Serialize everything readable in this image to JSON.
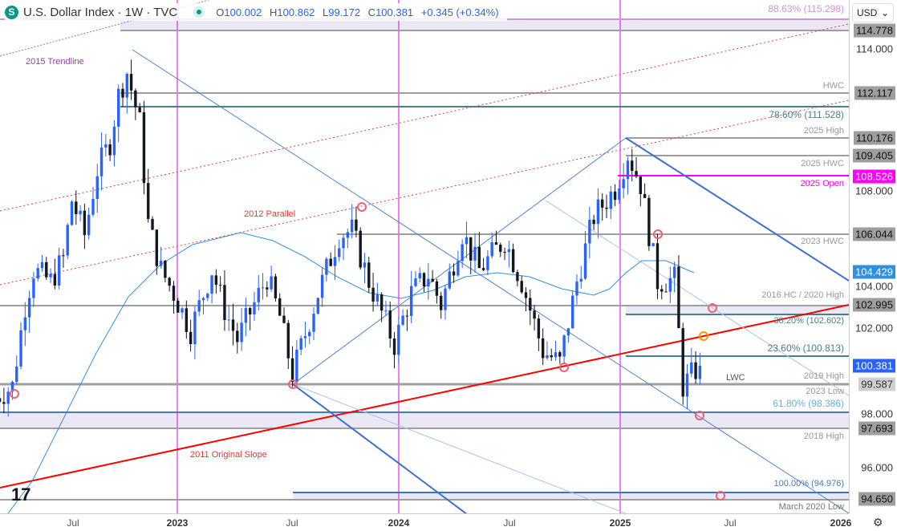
{
  "header": {
    "symbol_icon": "S",
    "title": "U.S. Dollar Index · 1W · TVC",
    "open_label": "O",
    "open": "100.002",
    "high_label": "H",
    "high": "100.862",
    "low_label": "L",
    "low": "99.172",
    "close_label": "C",
    "close": "100.381",
    "change": "+0.345 (+0.34%)"
  },
  "currency": "USD",
  "colors": {
    "up": "#2962ff",
    "down": "#131722",
    "magenta": "#ff00ff",
    "red": "#ff0000",
    "teal": "#4a7f8c",
    "gray": "#9e9e9e"
  },
  "price_axis": [
    {
      "text": "114.778",
      "tag": true
    },
    {
      "text": "114.000"
    },
    {
      "text": "112.117",
      "tag": true
    },
    {
      "text": "110.176",
      "tag": true
    },
    {
      "text": "109.405",
      "tag": true
    },
    {
      "text": "108.526",
      "tag": "magenta"
    },
    {
      "text": "108.000"
    },
    {
      "text": "106.044",
      "tag": true
    },
    {
      "text": "104.429",
      "tag": "blue"
    },
    {
      "text": "104.000"
    },
    {
      "text": "102.995",
      "tag": true
    },
    {
      "text": "102.000"
    },
    {
      "text": "100.381",
      "tag": "current"
    },
    {
      "text": "99.587",
      "tag": "light"
    },
    {
      "text": "98.000"
    },
    {
      "text": "97.693",
      "tag": true
    },
    {
      "text": "96.000"
    },
    {
      "text": "94.650",
      "tag": true
    }
  ],
  "time_axis": [
    {
      "text": "Jul"
    },
    {
      "text": "2023",
      "bold": true
    },
    {
      "text": "Jul"
    },
    {
      "text": "2024",
      "bold": true
    },
    {
      "text": "Jul"
    },
    {
      "text": "2025",
      "bold": true
    },
    {
      "text": "Jul"
    },
    {
      "text": "2026",
      "bold": true
    }
  ],
  "annotations": {
    "trendline_2015": "2015 Trendline",
    "parallel_2012": "2012 Parallel",
    "original_slope_2011": "2011 Original Slope",
    "fib_8863": "88.63% (115.298)",
    "hwc": "HWC",
    "fib_786": "78.60% (111.528)",
    "high_2025": "2025 High",
    "hwc_2025": "2025 HWC",
    "open_2025": "2025 Open",
    "hwc_2023": "2023 HWC",
    "hc_2016_high_2020": "2016 HC / 2020 High",
    "fib_382": "38.20% (102.602)",
    "fib_236": "23.60% (100.813)",
    "lwc": "LWC",
    "high_2019": "2019 High",
    "low_2023": "2023 Low",
    "fib_618": "61.80% (98.386)",
    "high_2018": "2018 High",
    "fib_100": "100.00% (94.976)",
    "low_march_2020": "March 2020 Low"
  },
  "chart_data": {
    "type": "candlestick",
    "title": "U.S. Dollar Index · 1W · TVC",
    "ylim": [
      93.5,
      116
    ],
    "approx_weekly_close_anchors": [
      [
        "2022-03-07",
        99.0
      ],
      [
        "2022-04-04",
        99.5
      ],
      [
        "2022-04-25",
        103.0
      ],
      [
        "2022-05-09",
        104.5
      ],
      [
        "2022-06-06",
        104.0
      ],
      [
        "2022-06-27",
        105.0
      ],
      [
        "2022-07-11",
        107.5
      ],
      [
        "2022-08-01",
        106.0
      ],
      [
        "2022-08-22",
        108.8
      ],
      [
        "2022-09-12",
        110.0
      ],
      [
        "2022-09-26",
        112.0
      ],
      [
        "2022-10-10",
        113.0
      ],
      [
        "2022-10-31",
        110.8
      ],
      [
        "2022-11-14",
        106.5
      ],
      [
        "2022-12-05",
        104.5
      ],
      [
        "2022-12-26",
        103.5
      ],
      [
        "2023-01-23",
        101.9
      ],
      [
        "2023-02-27",
        104.5
      ],
      [
        "2023-03-20",
        102.8
      ],
      [
        "2023-04-10",
        101.5
      ],
      [
        "2023-05-29",
        104.2
      ],
      [
        "2023-06-19",
        102.5
      ],
      [
        "2023-07-10",
        100.0
      ],
      [
        "2023-08-21",
        103.5
      ],
      [
        "2023-09-25",
        106.0
      ],
      [
        "2023-10-16",
        106.2
      ],
      [
        "2023-11-13",
        104.0
      ],
      [
        "2023-12-25",
        101.3
      ],
      [
        "2024-01-22",
        103.5
      ],
      [
        "2024-02-19",
        104.3
      ],
      [
        "2024-03-11",
        103.0
      ],
      [
        "2024-04-15",
        106.1
      ],
      [
        "2024-05-13",
        104.5
      ],
      [
        "2024-06-24",
        105.8
      ],
      [
        "2024-07-22",
        104.0
      ],
      [
        "2024-08-26",
        101.0
      ],
      [
        "2024-09-23",
        100.5
      ],
      [
        "2024-10-21",
        104.0
      ],
      [
        "2024-11-18",
        106.8
      ],
      [
        "2024-12-23",
        108.0
      ],
      [
        "2025-01-13",
        109.5
      ],
      [
        "2025-02-03",
        108.2
      ],
      [
        "2025-03-03",
        104.0
      ],
      [
        "2025-03-31",
        104.1
      ],
      [
        "2025-04-14",
        99.5
      ],
      [
        "2025-05-05",
        100.2
      ],
      [
        "2025-05-12",
        100.381
      ]
    ],
    "levels": [
      115.298,
      114.778,
      112.117,
      111.528,
      110.176,
      109.405,
      108.526,
      106.044,
      102.995,
      102.602,
      100.813,
      99.587,
      98.386,
      97.693,
      94.976,
      94.65
    ],
    "moving_average_last": 104.429
  }
}
